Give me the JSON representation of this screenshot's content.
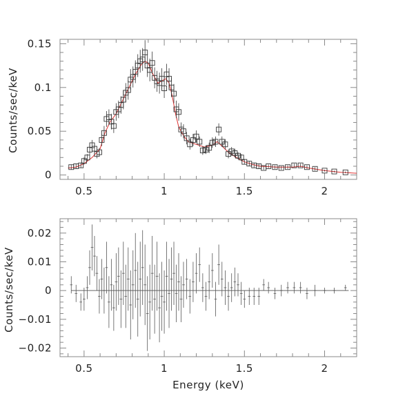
{
  "chart_data": [
    {
      "type": "scatter",
      "panel": "spectrum",
      "title": "",
      "xlabel": "",
      "ylabel": "Counts/sec/keV",
      "xlim": [
        0.35,
        2.2
      ],
      "ylim": [
        -0.005,
        0.155
      ],
      "x_ticks": [
        0.5,
        1,
        1.5,
        2
      ],
      "x_tick_labels": [
        "0.5",
        "1",
        "1.5",
        "2"
      ],
      "y_ticks": [
        0,
        0.05,
        0.1,
        0.15
      ],
      "y_tick_labels": [
        "0",
        "0.05",
        "0.1",
        "0.15"
      ],
      "grid": false,
      "colors": {
        "data": "#333333",
        "model": "#e03030",
        "axes": "#888888"
      },
      "series": [
        {
          "kind": "data",
          "marker": "square",
          "x": [
            0.42,
            0.45,
            0.48,
            0.5,
            0.52,
            0.535,
            0.55,
            0.565,
            0.58,
            0.595,
            0.61,
            0.625,
            0.64,
            0.655,
            0.67,
            0.685,
            0.7,
            0.715,
            0.73,
            0.745,
            0.76,
            0.775,
            0.79,
            0.805,
            0.82,
            0.835,
            0.85,
            0.865,
            0.88,
            0.895,
            0.91,
            0.925,
            0.94,
            0.955,
            0.97,
            0.985,
            1.0,
            1.015,
            1.03,
            1.045,
            1.06,
            1.075,
            1.09,
            1.105,
            1.12,
            1.14,
            1.16,
            1.18,
            1.2,
            1.22,
            1.24,
            1.26,
            1.28,
            1.3,
            1.32,
            1.34,
            1.36,
            1.38,
            1.4,
            1.42,
            1.44,
            1.46,
            1.48,
            1.5,
            1.53,
            1.56,
            1.59,
            1.62,
            1.65,
            1.69,
            1.73,
            1.77,
            1.81,
            1.85,
            1.89,
            1.94,
            2.0,
            2.06,
            2.13
          ],
          "y": [
            0.009,
            0.01,
            0.011,
            0.016,
            0.02,
            0.029,
            0.034,
            0.03,
            0.024,
            0.026,
            0.04,
            0.048,
            0.064,
            0.066,
            0.061,
            0.056,
            0.072,
            0.075,
            0.08,
            0.086,
            0.094,
            0.097,
            0.109,
            0.112,
            0.118,
            0.125,
            0.13,
            0.132,
            0.14,
            0.125,
            0.12,
            0.128,
            0.111,
            0.107,
            0.105,
            0.11,
            0.099,
            0.115,
            0.11,
            0.1,
            0.093,
            0.075,
            0.072,
            0.052,
            0.05,
            0.042,
            0.035,
            0.04,
            0.044,
            0.038,
            0.028,
            0.029,
            0.031,
            0.037,
            0.038,
            0.052,
            0.038,
            0.035,
            0.024,
            0.027,
            0.025,
            0.022,
            0.02,
            0.015,
            0.013,
            0.011,
            0.01,
            0.008,
            0.01,
            0.009,
            0.008,
            0.009,
            0.011,
            0.011,
            0.009,
            0.007,
            0.005,
            0.004,
            0.003
          ],
          "yerr": [
            0.003,
            0.003,
            0.003,
            0.004,
            0.004,
            0.006,
            0.006,
            0.006,
            0.005,
            0.005,
            0.007,
            0.008,
            0.009,
            0.009,
            0.009,
            0.008,
            0.01,
            0.01,
            0.01,
            0.011,
            0.011,
            0.011,
            0.012,
            0.012,
            0.013,
            0.013,
            0.013,
            0.013,
            0.014,
            0.013,
            0.013,
            0.013,
            0.012,
            0.012,
            0.012,
            0.012,
            0.011,
            0.012,
            0.012,
            0.011,
            0.011,
            0.01,
            0.01,
            0.008,
            0.008,
            0.007,
            0.006,
            0.007,
            0.007,
            0.006,
            0.005,
            0.005,
            0.006,
            0.006,
            0.006,
            0.007,
            0.006,
            0.006,
            0.005,
            0.005,
            0.005,
            0.004,
            0.004,
            0.003,
            0.003,
            0.003,
            0.003,
            0.002,
            0.002,
            0.002,
            0.002,
            0.002,
            0.002,
            0.002,
            0.002,
            0.002,
            0.001,
            0.001,
            0.001
          ]
        },
        {
          "kind": "model",
          "x": [
            0.4,
            0.45,
            0.5,
            0.55,
            0.6,
            0.63,
            0.66,
            0.7,
            0.74,
            0.78,
            0.82,
            0.86,
            0.88,
            0.9,
            0.93,
            0.96,
            0.99,
            1.01,
            1.03,
            1.05,
            1.07,
            1.09,
            1.12,
            1.15,
            1.2,
            1.25,
            1.3,
            1.33,
            1.36,
            1.4,
            1.45,
            1.5,
            1.55,
            1.6,
            1.7,
            1.8,
            1.85,
            1.9,
            2.0,
            2.1,
            2.2
          ],
          "y": [
            0.008,
            0.009,
            0.013,
            0.02,
            0.03,
            0.048,
            0.06,
            0.07,
            0.085,
            0.1,
            0.115,
            0.127,
            0.13,
            0.128,
            0.115,
            0.105,
            0.108,
            0.11,
            0.105,
            0.09,
            0.07,
            0.055,
            0.045,
            0.038,
            0.035,
            0.032,
            0.034,
            0.038,
            0.033,
            0.026,
            0.02,
            0.015,
            0.012,
            0.01,
            0.009,
            0.009,
            0.01,
            0.008,
            0.005,
            0.003,
            0.002
          ]
        }
      ]
    },
    {
      "type": "scatter",
      "panel": "residuals",
      "title": "",
      "xlabel": "Energy (keV)",
      "ylabel": "Counts/sec/keV",
      "xlim": [
        0.35,
        2.2
      ],
      "ylim": [
        -0.023,
        0.025
      ],
      "x_ticks": [
        0.5,
        1,
        1.5,
        2
      ],
      "x_tick_labels": [
        "0.5",
        "1",
        "1.5",
        "2"
      ],
      "y_ticks": [
        0.02,
        0.01,
        0,
        -0.01,
        -0.02
      ],
      "y_tick_labels": [
        "0.02",
        "0.01",
        "0",
        "−0.01",
        "−0.02"
      ],
      "grid": false,
      "zero_line": true,
      "series": [
        {
          "kind": "residuals",
          "marker": "cross",
          "x": [
            0.42,
            0.45,
            0.48,
            0.5,
            0.52,
            0.535,
            0.55,
            0.565,
            0.58,
            0.595,
            0.61,
            0.625,
            0.64,
            0.655,
            0.67,
            0.685,
            0.7,
            0.715,
            0.73,
            0.745,
            0.76,
            0.775,
            0.79,
            0.805,
            0.82,
            0.835,
            0.85,
            0.865,
            0.88,
            0.895,
            0.91,
            0.925,
            0.94,
            0.955,
            0.97,
            0.985,
            1.0,
            1.015,
            1.03,
            1.045,
            1.06,
            1.075,
            1.09,
            1.105,
            1.12,
            1.14,
            1.16,
            1.18,
            1.2,
            1.22,
            1.24,
            1.26,
            1.28,
            1.3,
            1.32,
            1.34,
            1.36,
            1.38,
            1.4,
            1.42,
            1.44,
            1.46,
            1.48,
            1.5,
            1.53,
            1.56,
            1.59,
            1.62,
            1.65,
            1.69,
            1.73,
            1.77,
            1.81,
            1.85,
            1.89,
            1.94,
            2.0,
            2.06,
            2.13
          ],
          "y": [
            0.002,
            -0.001,
            -0.004,
            -0.003,
            0.001,
            0.008,
            0.015,
            0.012,
            0.006,
            -0.002,
            0.004,
            0.0,
            0.008,
            -0.004,
            0.002,
            -0.006,
            0.003,
            0.005,
            -0.003,
            0.006,
            -0.002,
            0.004,
            -0.005,
            0.002,
            0.007,
            -0.003,
            0.004,
            0.008,
            0.002,
            -0.008,
            -0.004,
            0.006,
            -0.003,
            0.005,
            -0.006,
            -0.002,
            -0.004,
            0.005,
            -0.001,
            0.004,
            0.006,
            -0.001,
            0.003,
            -0.003,
            0.002,
            0.004,
            -0.002,
            0.003,
            0.006,
            0.009,
            0.001,
            -0.002,
            0.003,
            0.007,
            -0.003,
            0.009,
            0.004,
            0.001,
            -0.002,
            0.001,
            0.003,
            0.002,
            -0.001,
            -0.003,
            -0.002,
            -0.002,
            -0.002,
            0.002,
            0.001,
            -0.001,
            0.0,
            0.001,
            0.001,
            0.001,
            -0.001,
            0.0,
            0.0,
            0.0,
            0.001
          ],
          "yerr": [
            0.003,
            0.003,
            0.003,
            0.004,
            0.004,
            0.006,
            0.008,
            0.007,
            0.006,
            0.006,
            0.007,
            0.008,
            0.009,
            0.009,
            0.009,
            0.008,
            0.01,
            0.01,
            0.01,
            0.011,
            0.011,
            0.011,
            0.012,
            0.012,
            0.013,
            0.013,
            0.013,
            0.013,
            0.014,
            0.013,
            0.013,
            0.013,
            0.012,
            0.012,
            0.012,
            0.012,
            0.011,
            0.012,
            0.012,
            0.011,
            0.011,
            0.01,
            0.01,
            0.008,
            0.008,
            0.007,
            0.006,
            0.007,
            0.007,
            0.006,
            0.005,
            0.005,
            0.006,
            0.006,
            0.006,
            0.007,
            0.006,
            0.006,
            0.005,
            0.005,
            0.005,
            0.004,
            0.004,
            0.003,
            0.003,
            0.003,
            0.003,
            0.002,
            0.002,
            0.002,
            0.002,
            0.002,
            0.002,
            0.002,
            0.002,
            0.002,
            0.001,
            0.001,
            0.001
          ],
          "xerr": 0.008
        }
      ]
    }
  ]
}
